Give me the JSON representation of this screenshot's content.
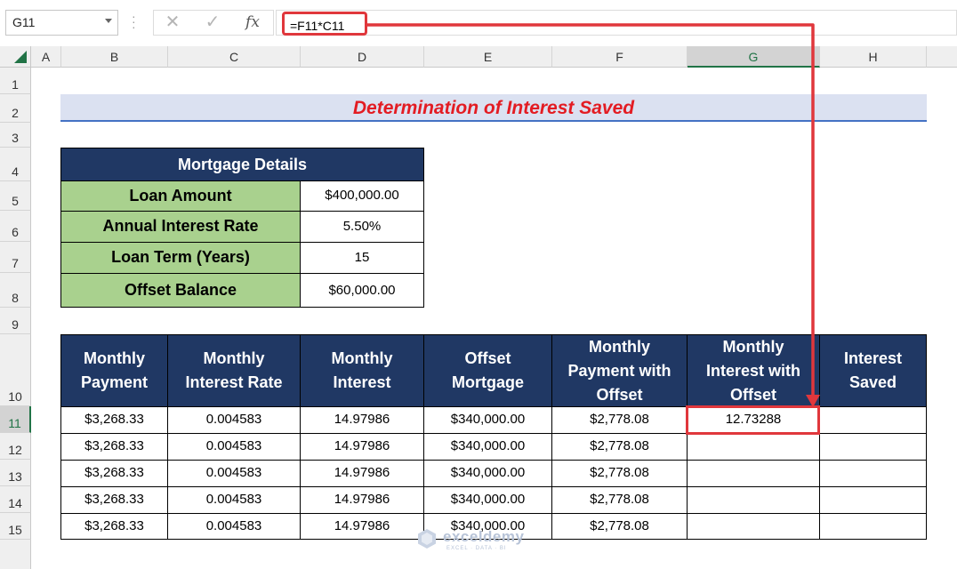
{
  "formula_bar": {
    "name_box": "G11",
    "cancel_icon": "✕",
    "enter_icon": "✓",
    "fx_label": "fx",
    "formula": "=F11*C11"
  },
  "columns": [
    "A",
    "B",
    "C",
    "D",
    "E",
    "F",
    "G",
    "H"
  ],
  "selected_column": "G",
  "rows": [
    "1",
    "2",
    "3",
    "4",
    "5",
    "6",
    "7",
    "8",
    "9",
    "10",
    "11",
    "12",
    "13",
    "14",
    "15"
  ],
  "selected_row": "11",
  "title": "Determination of Interest Saved",
  "mortgage": {
    "header": "Mortgage Details",
    "items": [
      {
        "label": "Loan Amount",
        "value": "$400,000.00"
      },
      {
        "label": "Annual Interest Rate",
        "value": "5.50%"
      },
      {
        "label": "Loan Term (Years)",
        "value": "15"
      },
      {
        "label": "Offset Balance",
        "value": "$60,000.00"
      }
    ]
  },
  "table": {
    "headers": [
      "Monthly Payment",
      "Monthly Interest Rate",
      "Monthly Interest",
      "Offset Mortgage",
      "Monthly Payment with Offset",
      "Monthly Interest with Offset",
      "Interest Saved"
    ],
    "rows": [
      [
        "$3,268.33",
        "0.004583",
        "14.97986",
        "$340,000.00",
        "$2,778.08",
        "12.73288",
        ""
      ],
      [
        "$3,268.33",
        "0.004583",
        "14.97986",
        "$340,000.00",
        "$2,778.08",
        "",
        ""
      ],
      [
        "$3,268.33",
        "0.004583",
        "14.97986",
        "$340,000.00",
        "$2,778.08",
        "",
        ""
      ],
      [
        "$3,268.33",
        "0.004583",
        "14.97986",
        "$340,000.00",
        "$2,778.08",
        "",
        ""
      ],
      [
        "$3,268.33",
        "0.004583",
        "14.97986",
        "$340,000.00",
        "$2,778.08",
        "",
        ""
      ]
    ]
  },
  "watermark": {
    "name": "exceldemy",
    "tagline": "EXCEL · DATA · BI"
  },
  "colors": {
    "title_red": "#e31c23",
    "header_navy": "#203864",
    "label_green": "#a9d18e",
    "highlight_red": "#e0373c",
    "excel_green": "#217346"
  }
}
